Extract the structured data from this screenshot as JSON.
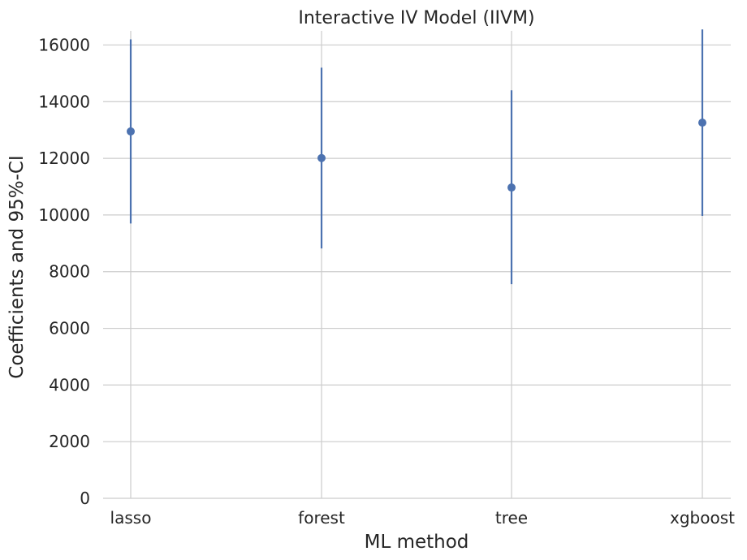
{
  "chart_data": {
    "type": "scatter",
    "title": "Interactive IV Model (IIVM)",
    "xlabel": "ML method",
    "ylabel": "Coefficients and 95%-CI",
    "categories": [
      "lasso",
      "forest",
      "tree",
      "xgboost"
    ],
    "series": [
      {
        "values": [
          12950,
          12010,
          10970,
          13260
        ],
        "ci_lower": [
          9700,
          8820,
          7560,
          9970
        ],
        "ci_upper": [
          16200,
          15200,
          14400,
          16550
        ]
      }
    ],
    "ylim": [
      0,
      16500
    ],
    "yticks": [
      0,
      2000,
      4000,
      6000,
      8000,
      10000,
      12000,
      14000,
      16000
    ],
    "grid": true,
    "colors": {
      "series": "#4c72b0",
      "grid": "#cccccc",
      "text": "#262626"
    }
  }
}
